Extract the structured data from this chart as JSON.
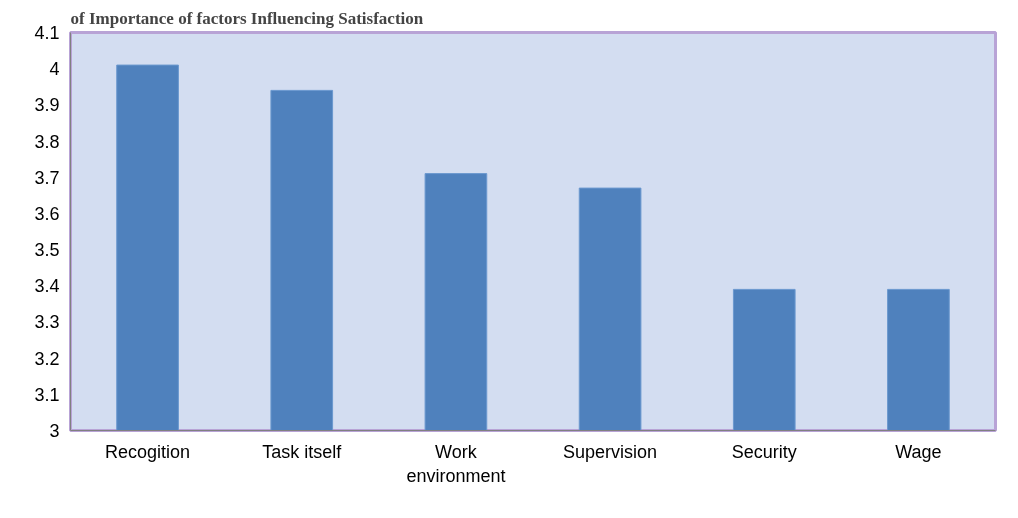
{
  "chart_data": {
    "type": "bar",
    "title": "of Importance of factors Influencing Satisfaction",
    "categories": [
      "Recogition",
      "Task itself",
      "Work\nenvironment",
      "Supervision",
      "Security",
      "Wage"
    ],
    "values": [
      4.01,
      3.94,
      3.71,
      3.67,
      3.39,
      3.39
    ],
    "color": "#4f81bd",
    "ylim": [
      3,
      4.1
    ],
    "yticks": [
      3,
      3.1,
      3.2,
      3.3,
      3.4,
      3.5,
      3.6,
      3.7,
      3.8,
      3.9,
      4,
      4.1
    ],
    "grid": false
  }
}
